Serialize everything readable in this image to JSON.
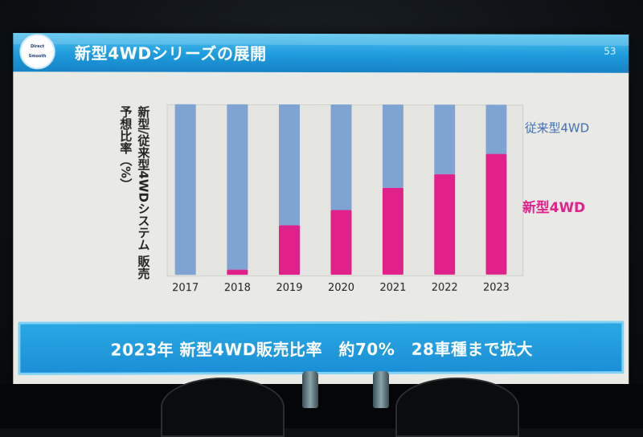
{
  "slide": {
    "logo_top": "Direct",
    "logo_bottom": "Smooth",
    "title": "新型4WDシリーズの展開",
    "page_number": "53",
    "y_axis_label": "新型/従来型4WDシステム 販売予想比率（%）",
    "banner": "2023年 新型4WD販売比率　約70%　28車種まで拡大"
  },
  "colors": {
    "conventional": "#7fa4d4",
    "new": "#e0218a",
    "conventional_label": "#3f6fb0",
    "new_label": "#e0218a"
  },
  "chart_data": {
    "type": "bar",
    "stacked": true,
    "categories": [
      "2017",
      "2018",
      "2019",
      "2020",
      "2021",
      "2022",
      "2023"
    ],
    "series": [
      {
        "name": "新型4WD",
        "values": [
          0,
          3,
          29,
          38,
          51,
          59,
          71
        ]
      },
      {
        "name": "従来型4WD",
        "values": [
          100,
          97,
          71,
          62,
          49,
          41,
          29
        ]
      }
    ],
    "ylim": [
      0,
      100
    ],
    "legend_placement": "right-inline"
  }
}
